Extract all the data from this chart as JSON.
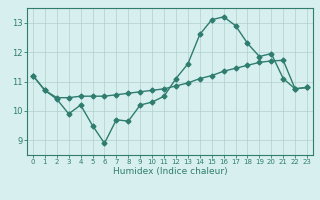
{
  "line1_x": [
    0,
    1,
    2,
    3,
    4,
    5,
    6,
    7,
    8,
    9,
    10,
    11,
    12,
    13,
    14,
    15,
    16,
    17,
    18,
    19,
    20,
    21,
    22,
    23
  ],
  "line1_y": [
    11.2,
    10.7,
    10.4,
    9.9,
    10.2,
    9.5,
    8.9,
    9.7,
    9.65,
    10.2,
    10.3,
    10.5,
    11.1,
    11.6,
    12.6,
    13.1,
    13.2,
    12.9,
    12.3,
    11.85,
    11.95,
    11.1,
    10.75,
    10.8
  ],
  "line2_x": [
    0,
    1,
    2,
    3,
    4,
    5,
    6,
    7,
    8,
    9,
    10,
    11,
    12,
    13,
    14,
    15,
    16,
    17,
    18,
    19,
    20,
    21,
    22,
    23
  ],
  "line2_y": [
    11.2,
    10.7,
    10.45,
    10.45,
    10.5,
    10.5,
    10.5,
    10.55,
    10.6,
    10.65,
    10.7,
    10.75,
    10.85,
    10.95,
    11.1,
    11.2,
    11.35,
    11.45,
    11.55,
    11.65,
    11.7,
    11.72,
    10.75,
    10.8
  ],
  "line_color": "#2e7d6e",
  "background_color": "#d8eff0",
  "grid_color": "#b0cfd0",
  "xlabel": "Humidex (Indice chaleur)",
  "ylim": [
    8.5,
    13.5
  ],
  "xlim": [
    -0.5,
    23.5
  ],
  "yticks": [
    9,
    10,
    11,
    12,
    13
  ],
  "xticks": [
    0,
    1,
    2,
    3,
    4,
    5,
    6,
    7,
    8,
    9,
    10,
    11,
    12,
    13,
    14,
    15,
    16,
    17,
    18,
    19,
    20,
    21,
    22,
    23
  ],
  "marker": "D",
  "markersize": 2.5,
  "linewidth": 1.0,
  "xlabel_fontsize": 6.5,
  "xtick_fontsize": 5.0,
  "ytick_fontsize": 6.0
}
